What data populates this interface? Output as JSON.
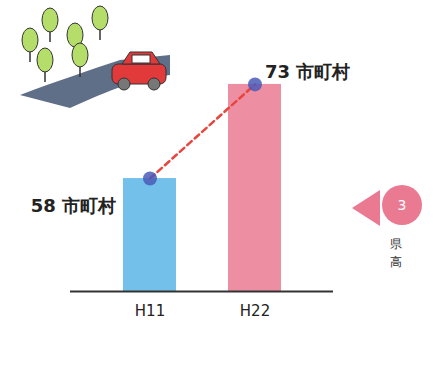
{
  "chart_data": {
    "type": "bar",
    "categories": [
      "H11",
      "H22"
    ],
    "values": [
      58,
      73
    ],
    "colors": [
      "#5ab6e6",
      "#ea7a92"
    ],
    "data_labels": true,
    "value_labels": [
      "58 市町村",
      "73 市町村"
    ],
    "ylim": [
      40,
      80
    ],
    "tick_labels": "x",
    "annotations": [
      "3",
      "県",
      "高"
    ]
  }
}
